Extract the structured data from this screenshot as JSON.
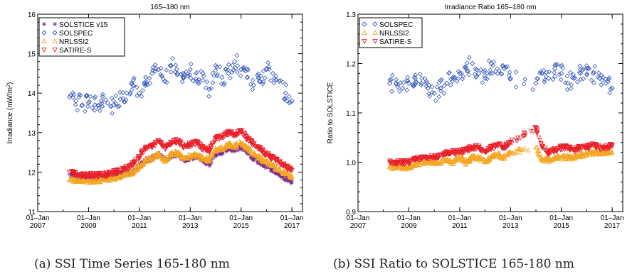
{
  "captions": {
    "a": "(a) SSI Time Series 165-180 nm",
    "b": "(b) SSI Ratio to SOLSTICE 165-180 nm"
  },
  "colors": {
    "SOLSTICE v15": "#7b2d8e",
    "SOLSPEC": "#3355bb",
    "NRLSSI2": "#f5a623",
    "SATIRE-S": "#e8202a"
  },
  "chart_data": [
    {
      "type": "scatter",
      "title": "165–180 nm",
      "xlabel": "",
      "ylabel": "Irradiance (mW/m²)",
      "xlim": [
        "2007-01-01",
        "2017-06-01"
      ],
      "ylim": [
        11,
        16
      ],
      "xticks": [
        "2007-01-01",
        "2009-01-01",
        "2011-01-01",
        "2013-01-01",
        "2015-01-01",
        "2017-01-01"
      ],
      "xtick_labels": [
        [
          "01–Jan",
          "2007"
        ],
        [
          "01–Jan",
          "2009"
        ],
        [
          "01–Jan",
          "2011"
        ],
        [
          "01–Jan",
          "2013"
        ],
        [
          "01–Jan",
          "2015"
        ],
        [
          "01–Jan",
          "2017"
        ]
      ],
      "yticks": [
        11,
        12,
        13,
        14,
        15,
        16
      ],
      "legend_position": "top-left",
      "series": [
        {
          "name": "SOLSTICE v15",
          "marker": "star",
          "x": [
            "2008-04",
            "2008-07",
            "2008-10",
            "2009-01",
            "2009-04",
            "2009-07",
            "2009-10",
            "2010-01",
            "2010-04",
            "2010-07",
            "2010-10",
            "2011-01",
            "2011-04",
            "2011-07",
            "2011-10",
            "2012-01",
            "2012-04",
            "2012-07",
            "2012-10",
            "2013-01",
            "2013-04",
            "2013-07",
            "2013-10",
            "2014-01",
            "2014-04",
            "2014-07",
            "2014-10",
            "2015-01",
            "2015-04",
            "2015-07",
            "2015-10",
            "2016-01",
            "2016-04",
            "2016-07",
            "2016-10",
            "2017-01"
          ],
          "y": [
            11.95,
            11.9,
            11.87,
            11.85,
            11.85,
            11.86,
            11.88,
            11.92,
            11.95,
            11.97,
            12.0,
            12.15,
            12.3,
            12.35,
            12.45,
            12.3,
            12.4,
            12.45,
            12.3,
            12.35,
            12.4,
            12.3,
            12.2,
            12.45,
            12.5,
            12.6,
            12.55,
            12.65,
            12.5,
            12.35,
            12.25,
            12.15,
            12.05,
            11.95,
            11.85,
            11.75
          ]
        },
        {
          "name": "SOLSPEC",
          "marker": "diamond",
          "x": [
            "2008-04",
            "2008-07",
            "2008-10",
            "2009-01",
            "2009-04",
            "2009-07",
            "2009-10",
            "2010-01",
            "2010-04",
            "2010-07",
            "2010-10",
            "2011-01",
            "2011-04",
            "2011-07",
            "2011-10",
            "2012-01",
            "2012-04",
            "2012-07",
            "2012-10",
            "2013-01",
            "2013-04",
            "2013-07",
            "2013-10",
            "2014-01",
            "2014-04",
            "2014-07",
            "2014-10",
            "2015-01",
            "2015-04",
            "2015-07",
            "2015-10",
            "2016-01",
            "2016-04",
            "2016-07",
            "2016-10",
            "2017-01"
          ],
          "y": [
            13.9,
            13.8,
            13.7,
            13.75,
            13.7,
            13.8,
            13.75,
            13.7,
            13.85,
            14.0,
            14.2,
            14.0,
            14.4,
            14.5,
            14.6,
            14.3,
            14.7,
            14.5,
            14.4,
            14.6,
            14.3,
            14.5,
            14.1,
            14.7,
            14.4,
            14.5,
            14.8,
            14.6,
            14.4,
            14.2,
            14.3,
            14.6,
            14.5,
            14.3,
            14.0,
            13.8
          ]
        },
        {
          "name": "NRLSSI2",
          "marker": "triangle-up",
          "x": [
            "2008-04",
            "2008-07",
            "2008-10",
            "2009-01",
            "2009-04",
            "2009-07",
            "2009-10",
            "2010-01",
            "2010-04",
            "2010-07",
            "2010-10",
            "2011-01",
            "2011-04",
            "2011-07",
            "2011-10",
            "2012-01",
            "2012-04",
            "2012-07",
            "2012-10",
            "2013-01",
            "2013-04",
            "2013-07",
            "2013-10",
            "2014-01",
            "2014-04",
            "2014-07",
            "2014-10",
            "2015-01",
            "2015-04",
            "2015-07",
            "2015-10",
            "2016-01",
            "2016-04",
            "2016-07",
            "2016-10",
            "2017-01"
          ],
          "y": [
            11.8,
            11.8,
            11.78,
            11.77,
            11.78,
            11.8,
            11.82,
            11.85,
            11.9,
            11.95,
            12.0,
            12.15,
            12.3,
            12.35,
            12.45,
            12.3,
            12.45,
            12.5,
            12.35,
            12.4,
            12.45,
            12.35,
            12.3,
            12.55,
            12.6,
            12.7,
            12.65,
            12.75,
            12.6,
            12.45,
            12.35,
            12.25,
            12.15,
            12.05,
            11.95,
            11.9
          ]
        },
        {
          "name": "SATIRE-S",
          "marker": "triangle-down",
          "x": [
            "2008-04",
            "2008-07",
            "2008-10",
            "2009-01",
            "2009-04",
            "2009-07",
            "2009-10",
            "2010-01",
            "2010-04",
            "2010-07",
            "2010-10",
            "2011-01",
            "2011-04",
            "2011-07",
            "2011-10",
            "2012-01",
            "2012-04",
            "2012-07",
            "2012-10",
            "2013-01",
            "2013-04",
            "2013-07",
            "2013-10",
            "2014-01",
            "2014-04",
            "2014-07",
            "2014-10",
            "2015-01",
            "2015-04",
            "2015-07",
            "2015-10",
            "2016-01",
            "2016-04",
            "2016-07",
            "2016-10",
            "2017-01"
          ],
          "y": [
            12.0,
            11.95,
            11.93,
            11.92,
            11.92,
            11.93,
            11.95,
            12.0,
            12.05,
            12.1,
            12.2,
            12.4,
            12.6,
            12.65,
            12.8,
            12.6,
            12.75,
            12.8,
            12.65,
            12.7,
            12.75,
            12.6,
            12.55,
            12.85,
            12.9,
            13.0,
            12.95,
            13.05,
            12.85,
            12.7,
            12.6,
            12.45,
            12.35,
            12.25,
            12.15,
            12.05
          ]
        }
      ]
    },
    {
      "type": "scatter",
      "title": "Irradiance Ratio 165–180 nm",
      "xlabel": "",
      "ylabel": "Ratio to SOLSTICE",
      "xlim": [
        "2007-01-01",
        "2017-06-01"
      ],
      "ylim": [
        0.9,
        1.3
      ],
      "xticks": [
        "2007-01-01",
        "2009-01-01",
        "2011-01-01",
        "2013-01-01",
        "2015-01-01",
        "2017-01-01"
      ],
      "xtick_labels": [
        [
          "01–Jan",
          "2007"
        ],
        [
          "01–Jan",
          "2009"
        ],
        [
          "01–Jan",
          "2011"
        ],
        [
          "01–Jan",
          "2013"
        ],
        [
          "01–Jan",
          "2015"
        ],
        [
          "01–Jan",
          "2017"
        ]
      ],
      "yticks": [
        0.9,
        1.0,
        1.1,
        1.2,
        1.3
      ],
      "ytick_labels": [
        "0.9",
        "1.0",
        "1.1",
        "1.2",
        "1.3"
      ],
      "legend_position": "top-left",
      "series": [
        {
          "name": "SOLSPEC",
          "marker": "diamond",
          "x": [
            "2008-04",
            "2008-07",
            "2008-10",
            "2009-01",
            "2009-04",
            "2009-07",
            "2009-10",
            "2010-01",
            "2010-04",
            "2010-07",
            "2010-10",
            "2011-01",
            "2011-04",
            "2011-07",
            "2011-10",
            "2012-01",
            "2012-04",
            "2012-07",
            "2012-10",
            "2013-01",
            "2014-01",
            "2014-04",
            "2014-07",
            "2014-10",
            "2015-01",
            "2015-04",
            "2015-07",
            "2015-10",
            "2016-01",
            "2016-04",
            "2016-07",
            "2016-10",
            "2017-01"
          ],
          "y": [
            1.16,
            1.16,
            1.15,
            1.16,
            1.17,
            1.16,
            1.15,
            1.14,
            1.15,
            1.16,
            1.17,
            1.18,
            1.19,
            1.2,
            1.18,
            1.17,
            1.2,
            1.18,
            1.19,
            1.17,
            1.16,
            1.18,
            1.17,
            1.19,
            1.18,
            1.16,
            1.17,
            1.18,
            1.19,
            1.18,
            1.17,
            1.16,
            1.15
          ]
        },
        {
          "name": "NRLSSI2",
          "marker": "triangle-up",
          "x": [
            "2008-04",
            "2008-07",
            "2008-10",
            "2009-01",
            "2009-04",
            "2009-07",
            "2009-10",
            "2010-01",
            "2010-04",
            "2010-07",
            "2010-10",
            "2011-01",
            "2011-04",
            "2011-07",
            "2011-10",
            "2012-01",
            "2012-04",
            "2012-07",
            "2012-10",
            "2013-01",
            "2014-01",
            "2014-04",
            "2014-07",
            "2014-10",
            "2015-01",
            "2015-04",
            "2015-07",
            "2015-10",
            "2016-01",
            "2016-04",
            "2016-07",
            "2016-10",
            "2017-01"
          ],
          "y": [
            0.99,
            0.99,
            0.99,
            0.99,
            0.995,
            1.0,
            1.0,
            1.0,
            1.0,
            1.005,
            1.0,
            1.01,
            1.0,
            1.01,
            1.01,
            1.0,
            1.01,
            1.015,
            1.01,
            1.02,
            1.03,
            1.005,
            1.005,
            1.01,
            1.01,
            1.01,
            1.01,
            1.015,
            1.015,
            1.02,
            1.02,
            1.02,
            1.02
          ]
        },
        {
          "name": "SATIRE-S",
          "marker": "triangle-down",
          "x": [
            "2008-04",
            "2008-07",
            "2008-10",
            "2009-01",
            "2009-04",
            "2009-07",
            "2009-10",
            "2010-01",
            "2010-04",
            "2010-07",
            "2010-10",
            "2011-01",
            "2011-04",
            "2011-07",
            "2011-10",
            "2012-01",
            "2012-04",
            "2012-07",
            "2012-10",
            "2013-01",
            "2014-01",
            "2014-04",
            "2014-07",
            "2014-10",
            "2015-01",
            "2015-04",
            "2015-07",
            "2015-10",
            "2016-01",
            "2016-04",
            "2016-07",
            "2016-10",
            "2017-01"
          ],
          "y": [
            1.0,
            1.0,
            1.0,
            1.0,
            1.005,
            1.01,
            1.01,
            1.01,
            1.015,
            1.02,
            1.02,
            1.02,
            1.025,
            1.03,
            1.03,
            1.02,
            1.03,
            1.035,
            1.03,
            1.04,
            1.07,
            1.03,
            1.02,
            1.025,
            1.03,
            1.03,
            1.025,
            1.03,
            1.03,
            1.035,
            1.03,
            1.03,
            1.035
          ]
        }
      ]
    }
  ]
}
